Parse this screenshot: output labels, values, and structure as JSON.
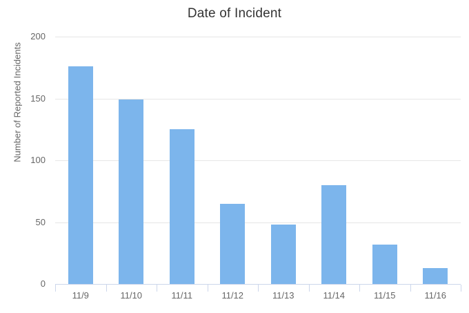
{
  "chart_data": {
    "type": "bar",
    "title": "Date of Incident",
    "xlabel": "",
    "ylabel": "Number of Reported Incidents",
    "categories": [
      "11/9",
      "11/10",
      "11/11",
      "11/12",
      "11/13",
      "11/14",
      "11/15",
      "11/16"
    ],
    "values": [
      176,
      149,
      125,
      65,
      48,
      80,
      32,
      13
    ],
    "ylim": [
      0,
      200
    ],
    "yticks": [
      0,
      50,
      100,
      150,
      200
    ],
    "grid": true,
    "legend": false,
    "colors": {
      "bar": "#7cb5ec",
      "grid": "#e6e6e6",
      "axis": "#ccd6eb",
      "title_text": "#333333",
      "label_text": "#666666"
    }
  }
}
